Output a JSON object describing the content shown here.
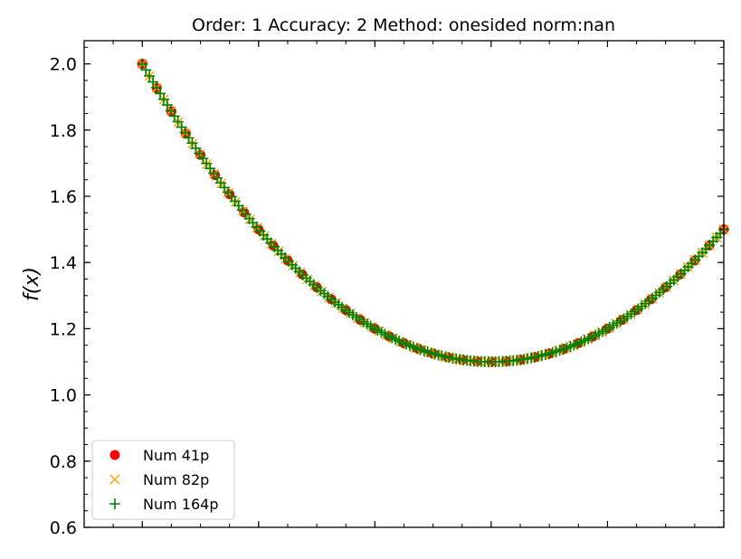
{
  "chart_data": {
    "type": "scatter",
    "title": "Order: 1 Accuracy: 2 Method: onesided norm:nan",
    "xlabel": "",
    "ylabel": "f(x)",
    "xlim": [
      -0.1,
      1.0
    ],
    "ylim": [
      0.6,
      2.07
    ],
    "yticks": [
      "0.6",
      "0.8",
      "1.0",
      "1.2",
      "1.4",
      "1.6",
      "1.8",
      "2.0"
    ],
    "function": "x^2 - x/0.75 ... sampled",
    "grid": false,
    "legend_position": "lower-left",
    "series": [
      {
        "name": "Num 41p",
        "marker": "circle",
        "color": "#ff0000",
        "n": 41
      },
      {
        "name": "Num 82p",
        "marker": "x",
        "color": "#ffa500",
        "n": 82
      },
      {
        "name": "Num 164p",
        "marker": "plus",
        "color": "#008000",
        "n": 164
      }
    ]
  }
}
